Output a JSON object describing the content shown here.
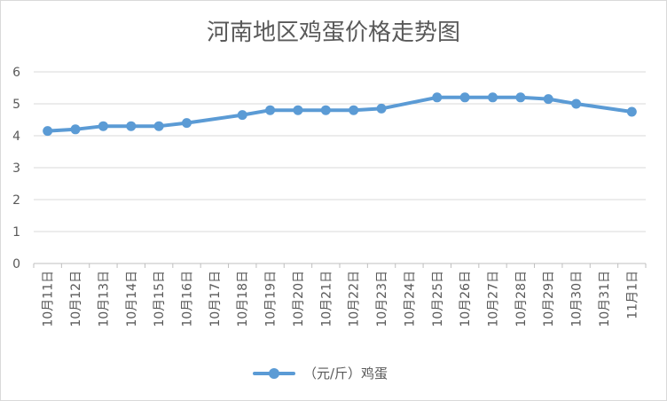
{
  "chart_data": {
    "type": "line",
    "title": "河南地区鸡蛋价格走势图",
    "categories": [
      "10月11日",
      "10月12日",
      "10月13日",
      "10月14日",
      "10月15日",
      "10月16日",
      "10月17日",
      "10月18日",
      "10月19日",
      "10月20日",
      "10月21日",
      "10月22日",
      "10月23日",
      "10月24日",
      "10月25日",
      "10月26日",
      "10月27日",
      "10月28日",
      "10月29日",
      "10月30日",
      "10月31日",
      "11月1日"
    ],
    "series": [
      {
        "name": "（元/斤）鸡蛋",
        "color": "#5b9bd5",
        "points": [
          {
            "x": "10月11日",
            "y": 4.15
          },
          {
            "x": "10月12日",
            "y": 4.2
          },
          {
            "x": "10月13日",
            "y": 4.3
          },
          {
            "x": "10月14日",
            "y": 4.3
          },
          {
            "x": "10月15日",
            "y": 4.3
          },
          {
            "x": "10月16日",
            "y": 4.4
          },
          {
            "x": "10月18日",
            "y": 4.65
          },
          {
            "x": "10月19日",
            "y": 4.8
          },
          {
            "x": "10月20日",
            "y": 4.8
          },
          {
            "x": "10月21日",
            "y": 4.8
          },
          {
            "x": "10月22日",
            "y": 4.8
          },
          {
            "x": "10月23日",
            "y": 4.85
          },
          {
            "x": "10月25日",
            "y": 5.2
          },
          {
            "x": "10月26日",
            "y": 5.2
          },
          {
            "x": "10月27日",
            "y": 5.2
          },
          {
            "x": "10月28日",
            "y": 5.2
          },
          {
            "x": "10月29日",
            "y": 5.15
          },
          {
            "x": "10月30日",
            "y": 5.0
          },
          {
            "x": "11月1日",
            "y": 4.75
          }
        ]
      }
    ],
    "xlabel": "",
    "ylabel": "",
    "ylim": [
      0,
      6
    ],
    "yticks": [
      0,
      1,
      2,
      3,
      4,
      5,
      6
    ],
    "grid": true,
    "legend_position": "bottom"
  }
}
